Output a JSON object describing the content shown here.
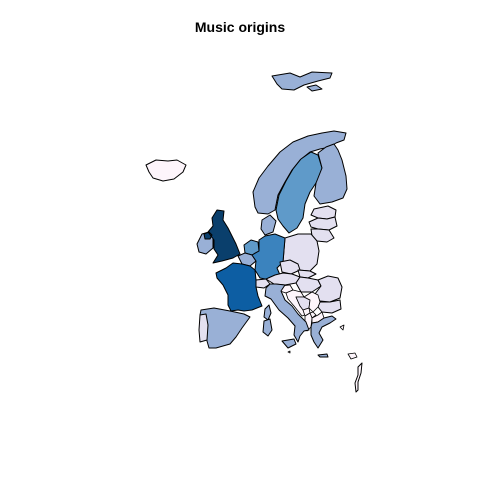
{
  "title": "Music origins",
  "legend_shown": false,
  "palette": {
    "level0": "#fdf5fb",
    "level1": "#e3e0f0",
    "level2": "#99b0d6",
    "level3": "#5f9ac9",
    "level4": "#3b83be",
    "level5": "#0d5ea3",
    "level6": "#0a3f6c",
    "none": "#ffffff"
  },
  "regions": [
    {
      "id": "united-kingdom",
      "level": 6
    },
    {
      "id": "france",
      "level": 5
    },
    {
      "id": "germany",
      "level": 4
    },
    {
      "id": "sweden",
      "level": 3
    },
    {
      "id": "norway",
      "level": 2
    },
    {
      "id": "finland",
      "level": 2
    },
    {
      "id": "spain",
      "level": 2
    },
    {
      "id": "italy",
      "level": 2
    },
    {
      "id": "svalbard",
      "level": 2
    },
    {
      "id": "ireland",
      "level": 2
    },
    {
      "id": "denmark",
      "level": 2
    },
    {
      "id": "netherlands",
      "level": 3
    },
    {
      "id": "belgium",
      "level": 2
    },
    {
      "id": "estonia",
      "level": 1
    },
    {
      "id": "latvia",
      "level": 1
    },
    {
      "id": "lithuania",
      "level": 1
    },
    {
      "id": "poland",
      "level": 1
    },
    {
      "id": "czechia",
      "level": 1
    },
    {
      "id": "slovakia",
      "level": 1
    },
    {
      "id": "hungary",
      "level": 1
    },
    {
      "id": "romania",
      "level": 1
    },
    {
      "id": "bulgaria",
      "level": 1
    },
    {
      "id": "portugal",
      "level": 1
    },
    {
      "id": "greece",
      "level": 2
    },
    {
      "id": "austria",
      "level": 1
    },
    {
      "id": "switzerland",
      "level": 1
    },
    {
      "id": "iceland",
      "level": 0
    },
    {
      "id": "slovenia",
      "level": 0
    },
    {
      "id": "croatia",
      "level": 0
    },
    {
      "id": "bosnia",
      "level": 1
    },
    {
      "id": "serbia",
      "level": 0
    },
    {
      "id": "montenegro",
      "level": 0
    },
    {
      "id": "albania",
      "level": 0
    },
    {
      "id": "north-macedonia",
      "level": 0
    },
    {
      "id": "kosovo",
      "level": 0
    },
    {
      "id": "corsica",
      "level": 2
    },
    {
      "id": "sardinia",
      "level": 2
    },
    {
      "id": "sicily",
      "level": 2
    },
    {
      "id": "crete",
      "level": 2
    },
    {
      "id": "malta",
      "level": 0
    },
    {
      "id": "cyprus",
      "level": 0
    },
    {
      "id": "aegean-islands",
      "level": 0
    }
  ]
}
